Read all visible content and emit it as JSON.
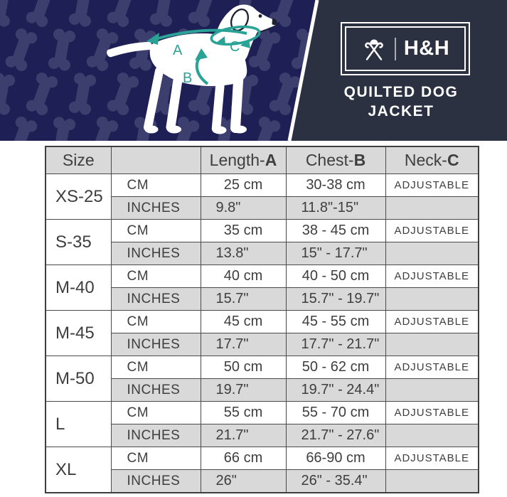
{
  "brand": {
    "logo_text": "H&H",
    "title_line1": "QUILTED DOG",
    "title_line2": "JACKET"
  },
  "diagram": {
    "labels": {
      "length": "A",
      "chest": "B",
      "neck": "C"
    }
  },
  "colors": {
    "navy": "#1e1f55",
    "bone": "#3c3f6e",
    "slate": "#2b3140",
    "teal": "#2aa396",
    "table_gray": "#d9d9d9",
    "table_border": "#4a4a4a",
    "text": "#3e3e3e"
  },
  "table": {
    "headers": {
      "size": "Size",
      "unit": "",
      "length": {
        "prefix": "Length-",
        "letter": "A"
      },
      "chest": {
        "prefix": "Chest-",
        "letter": "B"
      },
      "neck": {
        "prefix": "Neck-",
        "letter": "C"
      }
    },
    "rows": [
      {
        "size": "XS-25",
        "cm": {
          "unit": "CM",
          "length": "25 cm",
          "chest": "30-38 cm",
          "neck": "ADJUSTABLE"
        },
        "inches": {
          "unit": "INCHES",
          "length": "9.8\"",
          "chest": "11.8\"-15\"",
          "neck": ""
        }
      },
      {
        "size": "S-35",
        "cm": {
          "unit": "CM",
          "length": "35 cm",
          "chest": "38 - 45 cm",
          "neck": "ADJUSTABLE"
        },
        "inches": {
          "unit": "INCHES",
          "length": "13.8\"",
          "chest": "15\" - 17.7\"",
          "neck": ""
        }
      },
      {
        "size": "M-40",
        "cm": {
          "unit": "CM",
          "length": "40 cm",
          "chest": "40 - 50 cm",
          "neck": "ADJUSTABLE"
        },
        "inches": {
          "unit": "INCHES",
          "length": "15.7\"",
          "chest": "15.7\" - 19.7\"",
          "neck": ""
        }
      },
      {
        "size": "M-45",
        "cm": {
          "unit": "CM",
          "length": "45 cm",
          "chest": "45 - 55 cm",
          "neck": "ADJUSTABLE"
        },
        "inches": {
          "unit": "INCHES",
          "length": "17.7\"",
          "chest": "17.7\" - 21.7\"",
          "neck": ""
        }
      },
      {
        "size": "M-50",
        "cm": {
          "unit": "CM",
          "length": "50 cm",
          "chest": "50 - 62 cm",
          "neck": "ADJUSTABLE"
        },
        "inches": {
          "unit": "INCHES",
          "length": "19.7\"",
          "chest": "19.7\" - 24.4\"",
          "neck": ""
        }
      },
      {
        "size": "L",
        "cm": {
          "unit": "CM",
          "length": "55 cm",
          "chest": "55 - 70 cm",
          "neck": "ADJUSTABLE"
        },
        "inches": {
          "unit": "INCHES",
          "length": "21.7\"",
          "chest": "21.7\" - 27.6\"",
          "neck": ""
        }
      },
      {
        "size": "XL",
        "cm": {
          "unit": "CM",
          "length": "66 cm",
          "chest": "66-90 cm",
          "neck": "ADJUSTABLE"
        },
        "inches": {
          "unit": "INCHES",
          "length": "26\"",
          "chest": "26\" - 35.4\"",
          "neck": ""
        }
      }
    ]
  }
}
